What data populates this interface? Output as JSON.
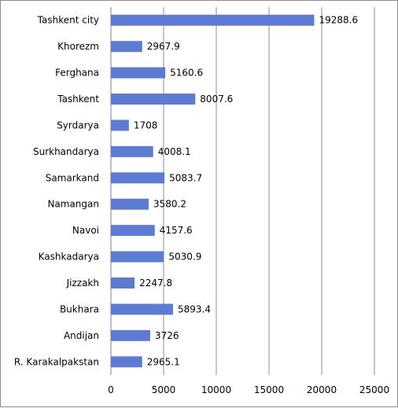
{
  "chart_data": {
    "type": "bar",
    "orientation": "horizontal",
    "categories": [
      "Tashkent city",
      "Khorezm",
      "Ferghana",
      "Tashkent",
      "Syrdarya",
      "Surkhandarya",
      "Samarkand",
      "Namangan",
      "Navoi",
      "Kashkadarya",
      "Jizzakh",
      "Bukhara",
      "Andijan",
      "R. Karakalpakstan"
    ],
    "values": [
      19288.6,
      2967.9,
      5160.6,
      8007.6,
      1708,
      4008.1,
      5083.7,
      3580.2,
      4157.6,
      5030.9,
      2247.8,
      5893.4,
      3726,
      2965.1
    ],
    "value_labels": [
      "19288.6",
      "2967.9",
      "5160.6",
      "8007.6",
      "1708",
      "4008.1",
      "5083.7",
      "3580.2",
      "4157.6",
      "5030.9",
      "2247.8",
      "5893.4",
      "3726",
      "2965.1"
    ],
    "xlim": [
      0,
      25000
    ],
    "xticks": [
      0,
      5000,
      10000,
      15000,
      20000,
      25000
    ],
    "title": "",
    "xlabel": "",
    "ylabel": "",
    "grid": "vertical",
    "legend": "none",
    "bar_color": "#5b7bd5",
    "grid_color": "#8c8c8c"
  }
}
